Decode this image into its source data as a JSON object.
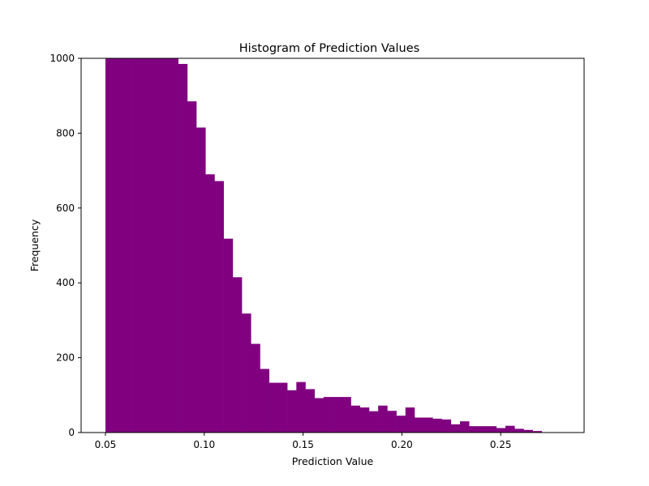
{
  "chart_data": {
    "type": "bar",
    "title": "Histogram of Prediction Values",
    "xlabel": "Prediction Value",
    "ylabel": "Frequency",
    "xlim": [
      0.0377,
      0.2922
    ],
    "ylim": [
      0,
      1000
    ],
    "grid": false,
    "color": "#800080",
    "xticks": [
      {
        "value": 0.05,
        "label": "0.05"
      },
      {
        "value": 0.1,
        "label": "0.10"
      },
      {
        "value": 0.15,
        "label": "0.15"
      },
      {
        "value": 0.2,
        "label": "0.20"
      },
      {
        "value": 0.25,
        "label": "0.25"
      }
    ],
    "yticks": [
      {
        "value": 0,
        "label": "0"
      },
      {
        "value": 200,
        "label": "200"
      },
      {
        "value": 400,
        "label": "400"
      },
      {
        "value": 600,
        "label": "600"
      },
      {
        "value": 800,
        "label": "800"
      },
      {
        "value": 1000,
        "label": "1000"
      }
    ],
    "bin_edges": [
      0.05,
      0.0546,
      0.0592,
      0.0638,
      0.0684,
      0.073,
      0.0776,
      0.0822,
      0.0868,
      0.0914,
      0.096,
      0.1006,
      0.1052,
      0.1098,
      0.1144,
      0.119,
      0.1236,
      0.1282,
      0.1328,
      0.1374,
      0.142,
      0.1466,
      0.1512,
      0.1558,
      0.1604,
      0.165,
      0.1696,
      0.1742,
      0.1788,
      0.1834,
      0.188,
      0.1926,
      0.1972,
      0.2018,
      0.2064,
      0.211,
      0.2156,
      0.2202,
      0.2248,
      0.2294,
      0.234,
      0.2386,
      0.2432,
      0.2478,
      0.2524,
      0.257,
      0.2616,
      0.2662,
      0.2708,
      0.2754
    ],
    "values": [
      1000,
      1000,
      1000,
      1000,
      1000,
      1000,
      1000,
      1000,
      985,
      885,
      815,
      690,
      672,
      518,
      415,
      318,
      237,
      170,
      133,
      133,
      113,
      135,
      116,
      92,
      95,
      95,
      95,
      72,
      67,
      57,
      72,
      58,
      45,
      67,
      40,
      40,
      37,
      35,
      22,
      30,
      17,
      17,
      17,
      12,
      18,
      10,
      7,
      4,
      0
    ]
  }
}
